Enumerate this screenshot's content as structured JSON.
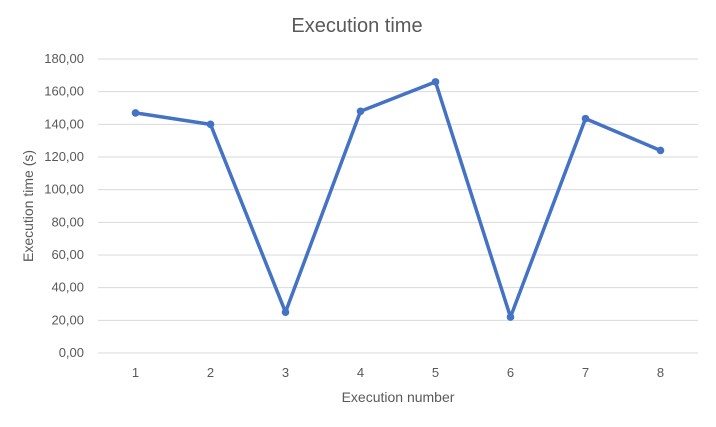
{
  "chart_data": {
    "type": "line",
    "title": "Execution time",
    "xlabel": "Execution number",
    "ylabel": "Execution time (s)",
    "categories": [
      "1",
      "2",
      "3",
      "4",
      "5",
      "6",
      "7",
      "8"
    ],
    "series": [
      {
        "values": [
          147,
          140,
          25,
          148,
          166,
          22,
          143.5,
          124
        ],
        "color": "#4472c4"
      }
    ],
    "ylim": [
      0,
      180
    ],
    "yticks": [
      0,
      20,
      40,
      60,
      80,
      100,
      120,
      140,
      160,
      180
    ],
    "ytick_labels": [
      "0,00",
      "20,00",
      "40,00",
      "60,00",
      "80,00",
      "100,00",
      "120,00",
      "140,00",
      "160,00",
      "180,00"
    ],
    "grid": true,
    "legend": "none"
  }
}
